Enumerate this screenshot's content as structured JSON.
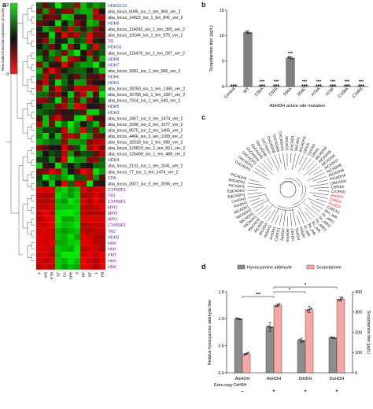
{
  "panels": {
    "a": "a",
    "b": "b",
    "c": "c",
    "d": "d"
  },
  "panel_a": {
    "colorbar_ticks": [
      "3",
      "-3"
    ],
    "colorbar_label": "Row-scaled transcript expression (Z-score)",
    "tissues": [
      "F",
      "MS",
      "PTR",
      "ST",
      "CA",
      "SPR",
      "S",
      "RF",
      "GF",
      "L",
      "FB"
    ],
    "genes": [
      {
        "name": "HDH11/12",
        "color": "#1a3fbf"
      },
      {
        "name": "aba_locus_6095_iso_1_len_906_ver_2",
        "color": "#111111"
      },
      {
        "name": "aba_locus_14922_iso_1_len_841_ver_2",
        "color": "#111111"
      },
      {
        "name": "HDH9",
        "color": "#1a3fbf"
      },
      {
        "name": "aba_locus_114292_iso_1_len_365_ver_2",
        "color": "#111111"
      },
      {
        "name": "aba_locus_19144_iso_1_len_975_ver_2",
        "color": "#111111"
      },
      {
        "name": "TR",
        "color": "#7a1f8f"
      },
      {
        "name": "HDH10",
        "color": "#1a3fbf"
      },
      {
        "name": "aba_locus_116476_iso_1_len_287_ver_2",
        "color": "#111111"
      },
      {
        "name": "HDH8",
        "color": "#1a3fbf"
      },
      {
        "name": "HDH7",
        "color": "#1a3fbf"
      },
      {
        "name": "aba_locus_3081_iso_1_len_586_ver_2",
        "color": "#111111"
      },
      {
        "name": "HDH6",
        "color": "#1a3fbf"
      },
      {
        "name": "HDH1",
        "color": "#1a3fbf"
      },
      {
        "name": "aba_locus_28250_iso_1_len_1360_ver_2",
        "color": "#111111"
      },
      {
        "name": "aba_locus_16758_iso_1_len_1067_ver_2",
        "color": "#111111"
      },
      {
        "name": "aba_locus_7914_iso_1_len_540_ver_2",
        "color": "#111111"
      },
      {
        "name": "HDH5",
        "color": "#1a3fbf"
      },
      {
        "name": "HDH3",
        "color": "#1a3fbf"
      },
      {
        "name": "aba_locus_3457_iso_3_len_1474_ver_2",
        "color": "#111111"
      },
      {
        "name": "aba_locus_1698_iso_2_len_1077_ver_2",
        "color": "#111111"
      },
      {
        "name": "aba_locus_8575_iso_2_len_1405_ver_2",
        "color": "#111111"
      },
      {
        "name": "aba_locus_4466_iso_2_len_1189_ver_2",
        "color": "#111111"
      },
      {
        "name": "aba_locus_18333_iso_1_len_989_ver_2",
        "color": "#111111"
      },
      {
        "name": "aba_locus_120820_iso_1_len_661_ver_2",
        "color": "#111111"
      },
      {
        "name": "aba_locus_126409_iso_1_len_488_ver_2",
        "color": "#111111"
      },
      {
        "name": "HDH4",
        "color": "#1a3fbf"
      },
      {
        "name": "aba_locus_2131_iso_1_len_1041_ver_2",
        "color": "#111111"
      },
      {
        "name": "aba_locus_77_iso_1_len_1474_ver_2",
        "color": "#111111"
      },
      {
        "name": "CPA",
        "color": "#7a1f8f"
      },
      {
        "name": "aba_locus_3927_iso_5_len_2096_ver_2",
        "color": "#111111"
      },
      {
        "name": "CYP80F1",
        "color": "#7a1f8f"
      },
      {
        "name": "TR1",
        "color": "#7a1f8f"
      },
      {
        "name": "CYP80F1",
        "color": "#7a1f8f"
      },
      {
        "name": "MPO",
        "color": "#7a1f8f"
      },
      {
        "name": "MPO",
        "color": "#7a1f8f"
      },
      {
        "name": "MPO",
        "color": "#7a1f8f"
      },
      {
        "name": "CYP80F1",
        "color": "#7a1f8f"
      },
      {
        "name": "TR2",
        "color": "#7a1f8f"
      },
      {
        "name": "HDH2",
        "color": "#1a3fbf"
      },
      {
        "name": "H6H",
        "color": "#7a1f8f"
      },
      {
        "name": "H6H",
        "color": "#7a1f8f"
      },
      {
        "name": "PMT",
        "color": "#7a1f8f"
      },
      {
        "name": "H6H",
        "color": "#7a1f8f"
      },
      {
        "name": "H6H",
        "color": "#7a1f8f"
      }
    ]
  },
  "panel_b": {
    "chart_data": {
      "type": "bar",
      "categories": [
        "Control",
        "WT",
        "C50A",
        "C52S",
        "S54A",
        "S54C",
        "H74A",
        "H74F",
        "C168A",
        "C168S"
      ],
      "values": [
        0.05,
        10.6,
        0.05,
        0.05,
        5.6,
        0.05,
        0.05,
        0.05,
        0.05,
        0.05
      ],
      "significance": [
        "",
        "",
        "***",
        "***",
        "***",
        "***",
        "***",
        "***",
        "***",
        "***"
      ],
      "ylabel": "Scopolamine titer (μg/L)",
      "xlabel": "AbHDH active site mutation",
      "yticks": [
        0,
        5,
        10,
        15
      ],
      "ylim": [
        0,
        15
      ],
      "bar_color": "#808080"
    }
  },
  "panel_c": {
    "left_labels": [
      "CrREX1",
      "ArADH1",
      "AtADH2",
      "AtCAD4",
      "AtCAD5",
      "MaCADH",
      "NtCADH1",
      "NtCADH2",
      "NtCADH3",
      "AtCADH1",
      "PtADH2",
      "CsADH2",
      "EgCADH1",
      "EgCADH2",
      "PtCADH1",
      "SbCADH1",
      "PtCADH3"
    ],
    "top_labels": [
      "OsCADH1",
      "OsCADH2",
      "OsCADH3",
      "OsCADH4",
      "OsCADH5",
      "OsCADH6",
      "OsCADH7",
      "OsCADH8",
      "OsCADH9",
      "OsCADH10",
      "MtCAD1",
      "ZmCAD1",
      "SbCAD1",
      "AtCADH3",
      "ClPDS",
      "CsCAD",
      "ClPAS"
    ],
    "right_labels": [
      "AtCADH4",
      "AtCADH5",
      "AtCADH6",
      "AtCADH7",
      "AtCADH8",
      "AtCADH9",
      "PtCADH4",
      "ObCADH",
      "ClPAS2",
      "CrOPAS"
    ],
    "highlight_labels": [
      "AbHDH",
      "DiHDH",
      "DsHDH"
    ],
    "bottom_labels": [
      "CrREX2",
      "Mm_adh",
      "Sc_adh1",
      "Sc_adh2",
      "Sc_adh3",
      "Ec_adh",
      "Bs_adh",
      "Kl_adh",
      "PfADH",
      "TbADH",
      "CbADH",
      "AmADH",
      "ApADH"
    ]
  },
  "panel_d": {
    "chart_data": {
      "type": "bar",
      "categories": [
        "AbHDH",
        "AbHDH",
        "DiHDH",
        "DsHDH"
      ],
      "extra_copy": [
        "–",
        "+",
        "+",
        "+"
      ],
      "extra_copy_label": "Extra copy DsH6H",
      "series": [
        {
          "name": "Hyoscyamine aldehyde",
          "values": [
            1.0,
            0.85,
            0.6,
            0.65
          ],
          "errors": [
            0.01,
            0.08,
            0.04,
            0.01
          ],
          "axis": "left",
          "color": "#8c8c8c"
        },
        {
          "name": "Scopolamine",
          "values": [
            94,
            334,
            312,
            364
          ],
          "errors": [
            3,
            5,
            15,
            10
          ],
          "axis": "right",
          "color": "#f4a7a3"
        }
      ],
      "ylabel_left": "Relative hyoscyamine aldehyde titer",
      "ylabel_right": "Scopolamine titer (μg/L)",
      "ylim_left": [
        0,
        1.5
      ],
      "yticks_left": [
        0.0,
        0.5,
        1.0,
        1.5
      ],
      "ylim_right": [
        0,
        400
      ],
      "yticks_right": [
        0,
        100,
        200,
        300,
        400
      ],
      "significance": [
        {
          "label": "***",
          "from": 1,
          "to": 2
        },
        {
          "label": "*",
          "from": 2,
          "to": 3
        },
        {
          "label": "*",
          "from": 2,
          "to": 4
        }
      ]
    }
  }
}
